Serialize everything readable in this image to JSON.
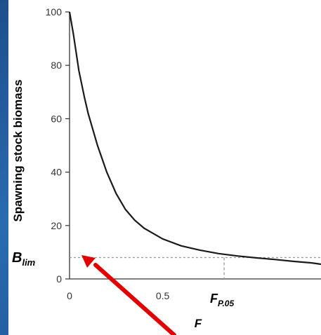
{
  "chart_data": {
    "type": "line",
    "title": "",
    "xlabel": "F",
    "ylabel": "Spawning stock biomass",
    "xlim": [
      0,
      1.35
    ],
    "ylim": [
      0,
      100
    ],
    "x_ticks": [
      0,
      0.5
    ],
    "x_tick_labels": [
      "0",
      "0.5"
    ],
    "y_ticks": [
      0,
      20,
      40,
      60,
      80,
      100
    ],
    "y_tick_labels": [
      "0",
      "20",
      "40",
      "60",
      "80",
      "100"
    ],
    "grid": false,
    "series": [
      {
        "color": "#1a1a1a",
        "x": [
          0,
          0.02,
          0.05,
          0.08,
          0.1,
          0.15,
          0.2,
          0.25,
          0.3,
          0.35,
          0.4,
          0.5,
          0.6,
          0.7,
          0.8,
          0.9,
          1.0,
          1.1,
          1.2,
          1.3,
          1.35
        ],
        "y": [
          100,
          92,
          78,
          68,
          62,
          50,
          40,
          32,
          26,
          22,
          19,
          15,
          12.4,
          10.8,
          9.5,
          8.6,
          7.9,
          7.3,
          6.6,
          6.0,
          5.5
        ]
      }
    ],
    "annotations": {
      "b_lim": {
        "main": "B",
        "sub": "lim",
        "value": 8
      },
      "f_p05": {
        "main": "F",
        "sub": "P.05",
        "value": 0.83
      }
    },
    "arrow_color": "#e30000",
    "reference_line_color": "#9a9a9a"
  }
}
